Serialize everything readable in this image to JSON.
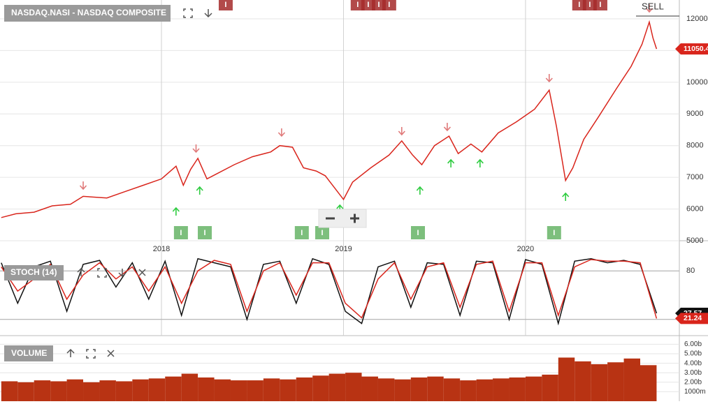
{
  "chart_data": [
    {
      "type": "line",
      "title": "NASDAQ.NASI - NASDAQ COMPOSITE",
      "color": "#d9251c",
      "x": [
        2017.12,
        2017.2,
        2017.3,
        2017.4,
        2017.5,
        2017.57,
        2017.7,
        2017.8,
        2017.9,
        2018.0,
        2018.08,
        2018.12,
        2018.16,
        2018.2,
        2018.25,
        2018.3,
        2018.4,
        2018.5,
        2018.6,
        2018.65,
        2018.72,
        2018.78,
        2018.85,
        2018.9,
        2018.96,
        2019.0,
        2019.05,
        2019.15,
        2019.25,
        2019.32,
        2019.38,
        2019.43,
        2019.5,
        2019.58,
        2019.63,
        2019.7,
        2019.76,
        2019.85,
        2019.95,
        2020.05,
        2020.13,
        2020.17,
        2020.22,
        2020.26,
        2020.32,
        2020.4,
        2020.5,
        2020.58,
        2020.64,
        2020.68,
        2020.7,
        2020.72
      ],
      "values": [
        5730,
        5850,
        5900,
        6100,
        6150,
        6400,
        6350,
        6550,
        6750,
        6950,
        7350,
        6750,
        7250,
        7600,
        6950,
        7100,
        7400,
        7650,
        7800,
        8000,
        7950,
        7300,
        7200,
        7050,
        6600,
        6300,
        6850,
        7300,
        7700,
        8150,
        7700,
        7400,
        8000,
        8300,
        7750,
        8050,
        7800,
        8400,
        8750,
        9150,
        9750,
        8600,
        6900,
        7300,
        8200,
        8900,
        9800,
        10500,
        11200,
        11900,
        11400,
        11050.4
      ],
      "xlim": [
        2017.113,
        2020.845
      ],
      "xticks": [
        2018,
        2019,
        2020
      ],
      "ylim": [
        5000,
        12594
      ],
      "yticks": [
        5000,
        6000,
        7000,
        8000,
        9000,
        10000,
        11000,
        12000
      ],
      "grid": true,
      "sell_signals": {
        "color": "#e07a7a",
        "x": [
          2017.57,
          2018.19,
          2018.66,
          2019.32,
          2019.57,
          2020.13,
          2020.68
        ],
        "y": [
          6739,
          7906,
          8412,
          8456,
          8588,
          10129,
          12330
        ]
      },
      "buy_signals": {
        "color": "#2ecc40",
        "x": [
          2018.08,
          2018.21,
          2018.98,
          2019.42,
          2019.59,
          2019.75,
          2020.22
        ],
        "y": [
          5925,
          6585,
          6013,
          6585,
          7444,
          7444,
          6387
        ]
      },
      "events": {
        "label": "I",
        "buy_color": "#7dbf7d",
        "sell_color": "#a52a2a",
        "buy_x": [
          2018.107,
          2018.238,
          2018.771,
          2018.883,
          2019.409,
          2020.157
        ],
        "sell_x": [
          2018.353,
          2019.078,
          2019.136,
          2019.194,
          2019.251,
          2020.295,
          2020.353,
          2020.411
        ]
      },
      "signal_label": "SELL"
    },
    {
      "type": "line",
      "title": "STOCH (14)",
      "x": [
        2017.12,
        2017.21,
        2017.3,
        2017.39,
        2017.48,
        2017.57,
        2017.66,
        2017.75,
        2017.84,
        2017.93,
        2018.02,
        2018.11,
        2018.2,
        2018.29,
        2018.38,
        2018.47,
        2018.56,
        2018.65,
        2018.74,
        2018.83,
        2018.92,
        2019.01,
        2019.1,
        2019.19,
        2019.28,
        2019.37,
        2019.46,
        2019.55,
        2019.64,
        2019.73,
        2019.82,
        2019.91,
        2020,
        2020.09,
        2020.18,
        2020.27,
        2020.36,
        2020.45,
        2020.54,
        2020.63,
        2020.72
      ],
      "series": [
        {
          "color": "#111111",
          "values": [
            90,
            40,
            85,
            92,
            30,
            88,
            93,
            60,
            90,
            45,
            92,
            25,
            95,
            90,
            85,
            20,
            88,
            92,
            40,
            95,
            88,
            30,
            15,
            85,
            92,
            35,
            90,
            88,
            25,
            92,
            90,
            20,
            94,
            88,
            15,
            92,
            95,
            90,
            93,
            88,
            27.57
          ]
        },
        {
          "color": "#d9251c",
          "values": [
            85,
            55,
            70,
            88,
            45,
            75,
            90,
            70,
            85,
            55,
            85,
            40,
            80,
            93,
            88,
            30,
            80,
            90,
            50,
            90,
            90,
            40,
            22,
            70,
            90,
            45,
            85,
            90,
            35,
            88,
            92,
            30,
            90,
            90,
            25,
            85,
            94,
            92,
            92,
            90,
            21.24
          ]
        }
      ],
      "xlim": [
        2017.113,
        2020.845
      ],
      "ylim": [
        0,
        100
      ],
      "yticks": [
        20,
        80
      ]
    },
    {
      "type": "bar",
      "title": "VOLUME",
      "color": "#b83313",
      "x": [
        2017.12,
        2017.21,
        2017.3,
        2017.39,
        2017.48,
        2017.57,
        2017.66,
        2017.75,
        2017.84,
        2017.93,
        2018.02,
        2018.11,
        2018.2,
        2018.29,
        2018.38,
        2018.47,
        2018.56,
        2018.65,
        2018.74,
        2018.83,
        2018.92,
        2019.01,
        2019.1,
        2019.19,
        2019.28,
        2019.37,
        2019.46,
        2019.55,
        2019.64,
        2019.73,
        2019.82,
        2019.91,
        2020,
        2020.09,
        2020.18,
        2020.27,
        2020.36,
        2020.45,
        2020.54,
        2020.63
      ],
      "values": [
        2100000000,
        2000000000,
        2200000000,
        2100000000,
        2300000000,
        2000000000,
        2200000000,
        2100000000,
        2300000000,
        2400000000,
        2600000000,
        2900000000,
        2500000000,
        2300000000,
        2200000000,
        2200000000,
        2400000000,
        2300000000,
        2500000000,
        2700000000,
        2900000000,
        3000000000,
        2600000000,
        2400000000,
        2300000000,
        2500000000,
        2600000000,
        2400000000,
        2200000000,
        2300000000,
        2400000000,
        2500000000,
        2600000000,
        2800000000,
        4600000000,
        4200000000,
        3900000000,
        4100000000,
        4500000000,
        3800000000
      ],
      "xlim": [
        2017.113,
        2020.845
      ],
      "ylim": [
        0,
        6840000000
      ],
      "yticks": [
        {
          "value": 1000000000,
          "label": "1000m"
        },
        {
          "value": 2000000000,
          "label": "2.00b"
        },
        {
          "value": 3000000000,
          "label": "3.00b"
        },
        {
          "value": 4000000000,
          "label": "4.00b"
        },
        {
          "value": 5000000000,
          "label": "5.00b"
        },
        {
          "value": 6000000000,
          "label": "6.00b"
        }
      ]
    }
  ]
}
